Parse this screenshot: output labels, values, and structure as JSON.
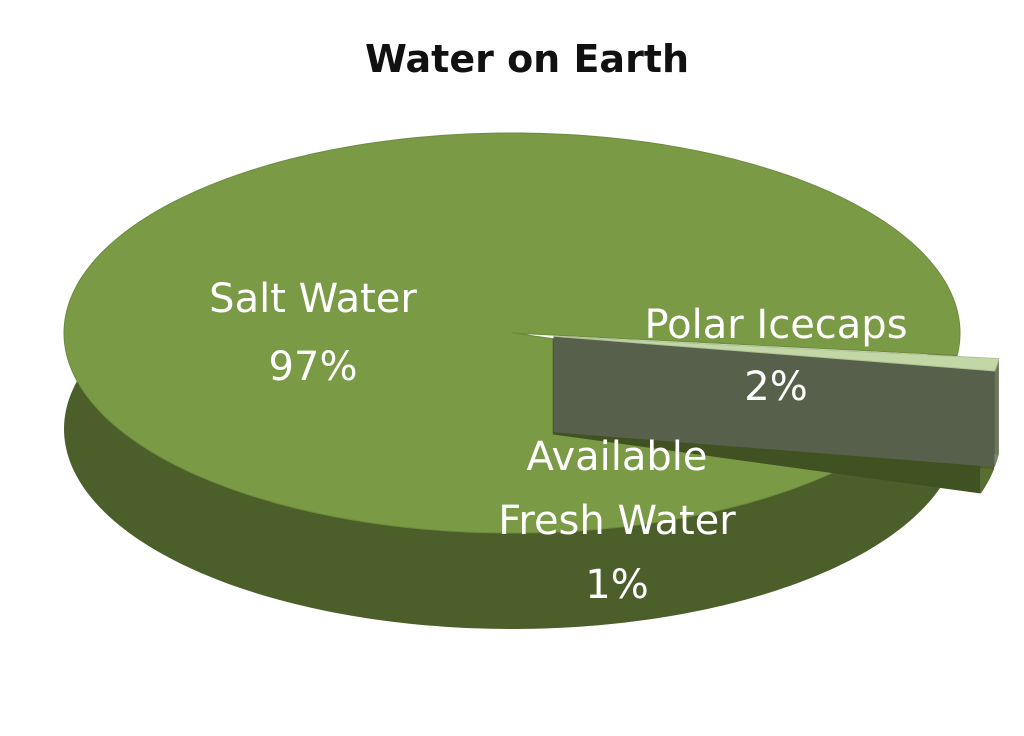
{
  "chart_data": {
    "type": "pie",
    "title": "Water on Earth",
    "slices": [
      {
        "name": "Salt Water",
        "value": 97,
        "label": "97%",
        "color": "#7a9a45"
      },
      {
        "name": "Polar Icecaps",
        "value": 2,
        "label": "2%",
        "color": "#8fb34c"
      },
      {
        "name": "Available Fresh Water",
        "value": 1,
        "label": "1%",
        "color": "#c2d6a6"
      }
    ],
    "exploded": [
      "Polar Icecaps",
      "Available Fresh Water"
    ],
    "style": "3d"
  }
}
